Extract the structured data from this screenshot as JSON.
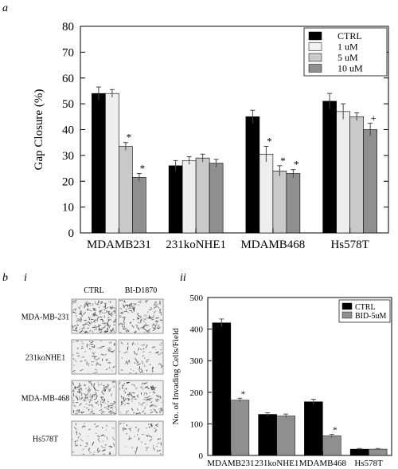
{
  "panels": {
    "a": "a",
    "b": "b",
    "i": "i",
    "ii": "ii"
  },
  "colors": {
    "ctrl": "#000000",
    "c1": "#eeeeee",
    "c5": "#c9c9c9",
    "c10": "#8f8f8f",
    "bid": "#8f8f8f",
    "swatch_light": "#f2f2f2"
  },
  "micrographs": {
    "col_headers": [
      "CTRL",
      "BI-D1870"
    ],
    "row_labels": [
      "MDA-MB-231",
      "231koNHE1",
      "MDA-MB-468",
      "Hs578T"
    ],
    "density": [
      [
        0.36,
        0.26
      ],
      [
        0.14,
        0.13
      ],
      [
        0.3,
        0.22
      ],
      [
        0.12,
        0.1
      ]
    ]
  },
  "chart_data": [
    {
      "type": "bar",
      "title": "",
      "xlabel": "",
      "ylabel": "Gap Closure (%)",
      "ylim": [
        0,
        80
      ],
      "yticks": [
        0,
        10,
        20,
        30,
        40,
        50,
        60,
        70,
        80
      ],
      "grid": false,
      "legend_position": "top-right",
      "categories": [
        "MDAMB231",
        "231koNHE1",
        "MDAMB468",
        "Hs578T"
      ],
      "series": [
        {
          "name": "CTRL",
          "color": "#000000",
          "values": [
            54,
            26,
            45,
            51
          ],
          "errors": [
            2.5,
            2.0,
            2.5,
            3.0
          ],
          "marks": [
            "",
            "",
            "",
            ""
          ]
        },
        {
          "name": "1 uM",
          "color": "#eeeeee",
          "values": [
            54,
            28,
            30.5,
            47
          ],
          "errors": [
            1.5,
            1.5,
            3.0,
            3.0
          ],
          "marks": [
            "",
            "",
            "*",
            ""
          ]
        },
        {
          "name": "5 uM",
          "color": "#c9c9c9",
          "values": [
            33.5,
            29,
            24,
            45
          ],
          "errors": [
            1.5,
            1.5,
            2.0,
            1.5
          ],
          "marks": [
            "*",
            "",
            "*",
            ""
          ]
        },
        {
          "name": "10 uM",
          "color": "#8f8f8f",
          "values": [
            21.5,
            27,
            23,
            40
          ],
          "errors": [
            1.5,
            1.5,
            1.5,
            2.5
          ],
          "marks": [
            "*",
            "",
            "*",
            "+"
          ]
        }
      ]
    },
    {
      "type": "bar",
      "title": "",
      "xlabel": "",
      "ylabel": "No. of Invading Cells/Field",
      "ylim": [
        0,
        500
      ],
      "yticks": [
        0,
        100,
        200,
        300,
        400,
        500
      ],
      "grid": false,
      "legend_position": "top-right",
      "categories": [
        "MDAMB231",
        "231koNHE1",
        "MDAMB468",
        "Hs578T"
      ],
      "series": [
        {
          "name": "CTRL",
          "color": "#000000",
          "values": [
            420,
            130,
            170,
            20
          ],
          "errors": [
            12,
            5,
            8,
            2
          ],
          "marks": [
            "",
            "",
            "",
            ""
          ]
        },
        {
          "name": "BID-5uM",
          "color": "#8f8f8f",
          "values": [
            175,
            125,
            62,
            20
          ],
          "errors": [
            6,
            6,
            5,
            2
          ],
          "marks": [
            "*",
            "",
            "*",
            ""
          ]
        }
      ]
    }
  ]
}
